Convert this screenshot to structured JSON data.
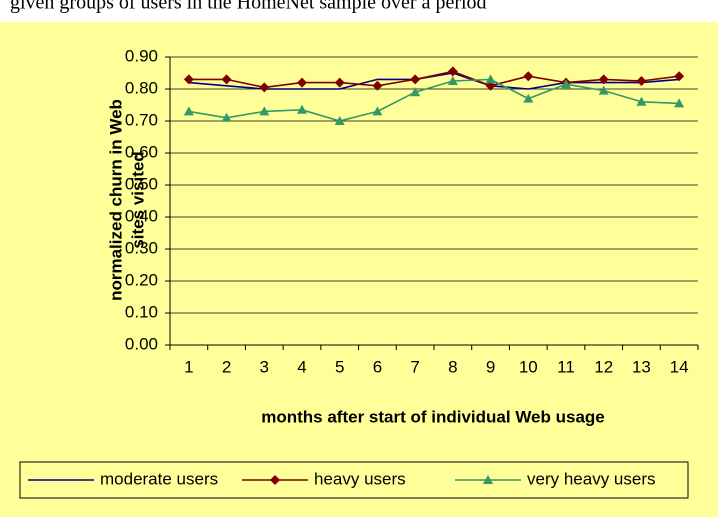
{
  "caption": "given groups of users in the HomeNet sample over a period",
  "chart_data": {
    "type": "line",
    "y_label": [
      "normalized churn in Web",
      "sites visited"
    ],
    "x_label": "months after start of individual Web usage",
    "categories": [
      "1",
      "2",
      "3",
      "4",
      "5",
      "6",
      "7",
      "8",
      "9",
      "10",
      "11",
      "12",
      "13",
      "14"
    ],
    "series": [
      {
        "name": "moderate users",
        "color": "#000080",
        "marker": "none",
        "values": [
          0.82,
          0.81,
          0.8,
          0.8,
          0.8,
          0.83,
          0.83,
          0.85,
          0.81,
          0.8,
          0.82,
          0.82,
          0.82,
          0.83
        ]
      },
      {
        "name": "heavy users",
        "color": "#800000",
        "marker": "diamond",
        "values": [
          0.83,
          0.83,
          0.805,
          0.82,
          0.82,
          0.81,
          0.83,
          0.855,
          0.81,
          0.84,
          0.82,
          0.83,
          0.825,
          0.84
        ]
      },
      {
        "name": "very heavy users",
        "color": "#339966",
        "marker": "triangle",
        "values": [
          0.73,
          0.71,
          0.73,
          0.735,
          0.7,
          0.73,
          0.79,
          0.825,
          0.83,
          0.77,
          0.815,
          0.795,
          0.76,
          0.755
        ]
      }
    ],
    "ylim": [
      0,
      0.9
    ],
    "yticks": [
      {
        "value": 0,
        "label": "0.00"
      },
      {
        "value": 0.1,
        "label": "0.10"
      },
      {
        "value": 0.2,
        "label": "0.20"
      },
      {
        "value": 0.3,
        "label": "0.30"
      },
      {
        "value": 0.4,
        "label": "0.40"
      },
      {
        "value": 0.5,
        "label": "0.50"
      },
      {
        "value": 0.6,
        "label": "0.60"
      },
      {
        "value": 0.7,
        "label": "0.70"
      },
      {
        "value": 0.8,
        "label": "0.80"
      },
      {
        "value": 0.9,
        "label": "0.90"
      }
    ],
    "grid": true,
    "legend": "bottom",
    "background": "#ffff99"
  }
}
